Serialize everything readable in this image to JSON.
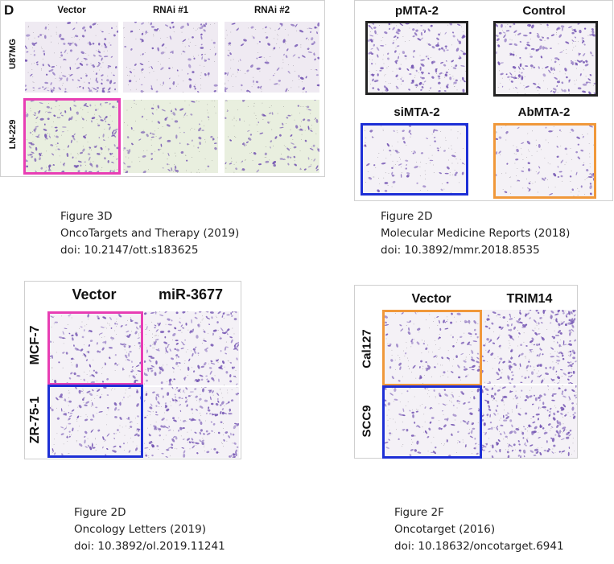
{
  "colors": {
    "pink": "#e83eb4",
    "blue": "#1d2fd6",
    "orange": "#f0983a",
    "black": "#222222",
    "stain": "#6f4fb0",
    "bg_purple": "#efeaf2",
    "bg_green": "#e9efdf"
  },
  "panels": {
    "p3d": {
      "letter": "D",
      "columns": [
        "Vector",
        "RNAi #1",
        "RNAi #2"
      ],
      "rows": [
        "U87MG",
        "LN-229"
      ]
    },
    "p2d_mmr": {
      "labels": [
        "pMTA-2",
        "Control",
        "siMTA-2",
        "AbMTA-2"
      ]
    },
    "p2d_ol": {
      "columns": [
        "Vector",
        "miR-3677"
      ],
      "rows": [
        "MCF-7",
        "ZR-75-1"
      ]
    },
    "p2f": {
      "columns": [
        "Vector",
        "TRIM14"
      ],
      "rows": [
        "Cal127",
        "SCC9"
      ]
    }
  },
  "captions": {
    "c1": {
      "figure": "Figure 3D",
      "journal": "OncoTargets and Therapy (2019)",
      "doi": "doi: 10.2147/ott.s183625"
    },
    "c2": {
      "figure": "Figure 2D",
      "journal": "Molecular Medicine Reports (2018)",
      "doi": "doi: 10.3892/mmr.2018.8535"
    },
    "c3": {
      "figure": "Figure 2D",
      "journal": "Oncology Letters (2019)",
      "doi": "doi: 10.3892/ol.2019.11241"
    },
    "c4": {
      "figure": "Figure 2F",
      "journal": "Oncotarget (2016)",
      "doi": "doi: 10.18632/oncotarget.6941"
    }
  }
}
